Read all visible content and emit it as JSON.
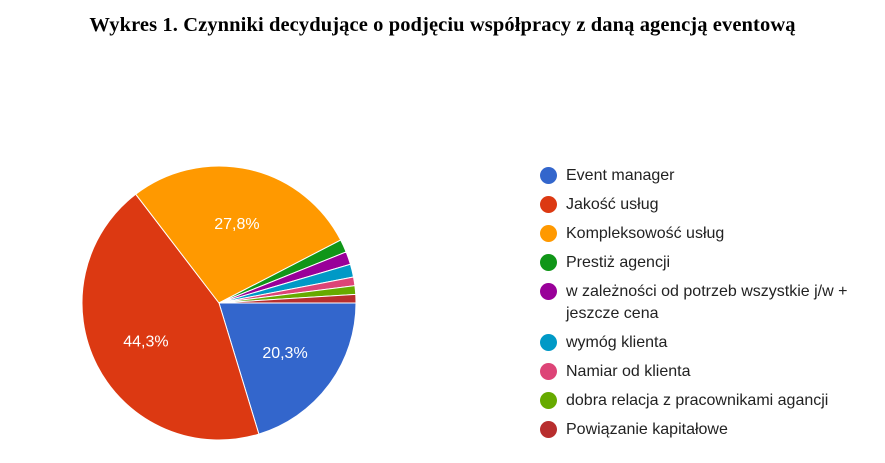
{
  "title": "Wykres 1. Czynniki decydujące o podjęciu współpracy z daną agencją eventową",
  "chart_data": {
    "type": "pie",
    "start_direction": "east",
    "direction": "clockwise",
    "labels": [
      "Event manager",
      "Jakość usług",
      "Kompleksowość usług",
      "Prestiż agencji",
      "w zależności od potrzeb wszystkie j/w + jeszcze cena",
      "wymóg klienta",
      "Namiar od klienta",
      "dobra relacja z pracownikami agancji",
      "Powiązanie kapitałowe"
    ],
    "values": [
      20.3,
      44.3,
      27.8,
      1.52,
      1.52,
      1.52,
      1.02,
      1.02,
      1.0
    ],
    "value_labels": [
      "20,3%",
      "44,3%",
      "27,8%",
      "",
      "",
      "",
      "",
      "",
      ""
    ],
    "colors": [
      "#3366cc",
      "#dc3912",
      "#ff9900",
      "#109618",
      "#990099",
      "#0099c6",
      "#dd4477",
      "#66aa00",
      "#b82e2e"
    ],
    "legend_position": "right"
  }
}
